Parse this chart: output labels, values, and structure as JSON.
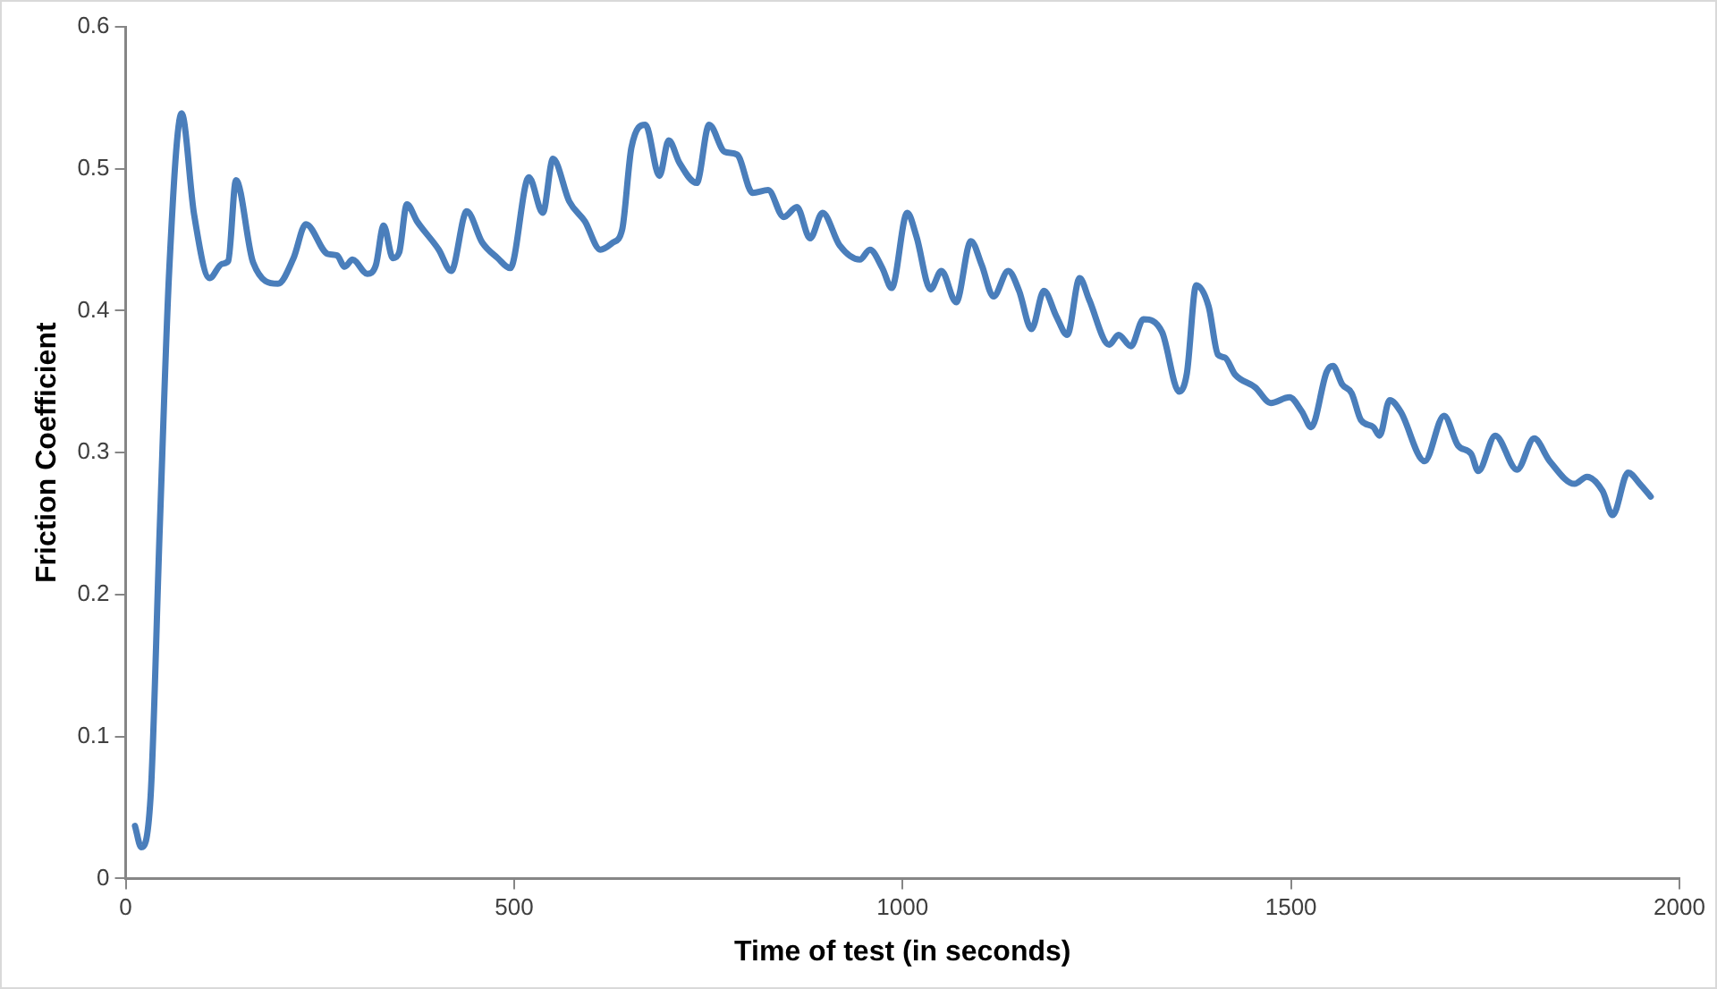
{
  "chart_data": {
    "type": "line",
    "xlabel": "Time of test (in seconds)",
    "ylabel": "Friction Coefficient",
    "xlim": [
      0,
      2000
    ],
    "xticks": [
      0,
      500,
      1000,
      1500,
      2000
    ],
    "ylim": [
      0,
      0.6
    ],
    "yticks": [
      0,
      0.1,
      0.2,
      0.3,
      0.4,
      0.5,
      0.6
    ],
    "grid": false,
    "legend": false,
    "marker": "none",
    "line_style": "solid",
    "series": [
      {
        "color": "#4a7ebb",
        "x": [
          12,
          20,
          32,
          44,
          56,
          72,
          88,
          108,
          124,
          132,
          142,
          164,
          196,
          216,
          232,
          260,
          272,
          282,
          292,
          311,
          322,
          332,
          344,
          352,
          362,
          375,
          403,
          419,
          439,
          459,
          479,
          495,
          519,
          537,
          550,
          571,
          591,
          611,
          627,
          639,
          651,
          669,
          687,
          699,
          713,
          735,
          751,
          771,
          787,
          807,
          827,
          847,
          864,
          881,
          897,
          919,
          945,
          958,
          974,
          986,
          1006,
          1018,
          1036,
          1050,
          1069,
          1088,
          1102,
          1117,
          1136,
          1150,
          1166,
          1182,
          1198,
          1212,
          1228,
          1240,
          1266,
          1278,
          1294,
          1310,
          1334,
          1356,
          1366,
          1378,
          1394,
          1406,
          1415,
          1428,
          1454,
          1474,
          1498,
          1514,
          1526,
          1546,
          1554,
          1566,
          1578,
          1590,
          1606,
          1614,
          1627,
          1641,
          1672,
          1697,
          1715,
          1732,
          1741,
          1763,
          1791,
          1813,
          1833,
          1865,
          1881,
          1901,
          1914,
          1934,
          1949,
          1963
        ],
        "values": [
          0.037,
          0.022,
          0.057,
          0.249,
          0.428,
          0.539,
          0.468,
          0.423,
          0.433,
          0.435,
          0.492,
          0.434,
          0.419,
          0.437,
          0.461,
          0.44,
          0.439,
          0.431,
          0.436,
          0.426,
          0.432,
          0.46,
          0.437,
          0.441,
          0.475,
          0.463,
          0.443,
          0.428,
          0.47,
          0.448,
          0.437,
          0.43,
          0.494,
          0.469,
          0.507,
          0.477,
          0.463,
          0.443,
          0.448,
          0.457,
          0.515,
          0.531,
          0.495,
          0.52,
          0.504,
          0.49,
          0.531,
          0.512,
          0.51,
          0.483,
          0.485,
          0.466,
          0.473,
          0.451,
          0.469,
          0.446,
          0.436,
          0.443,
          0.43,
          0.416,
          0.469,
          0.452,
          0.415,
          0.428,
          0.406,
          0.449,
          0.432,
          0.41,
          0.428,
          0.414,
          0.387,
          0.414,
          0.396,
          0.383,
          0.423,
          0.408,
          0.376,
          0.383,
          0.375,
          0.394,
          0.385,
          0.343,
          0.356,
          0.418,
          0.403,
          0.369,
          0.367,
          0.355,
          0.346,
          0.335,
          0.339,
          0.329,
          0.318,
          0.357,
          0.361,
          0.348,
          0.342,
          0.323,
          0.318,
          0.312,
          0.337,
          0.329,
          0.294,
          0.326,
          0.305,
          0.299,
          0.287,
          0.312,
          0.288,
          0.31,
          0.294,
          0.278,
          0.283,
          0.273,
          0.256,
          0.286,
          0.278,
          0.269
        ]
      }
    ]
  }
}
